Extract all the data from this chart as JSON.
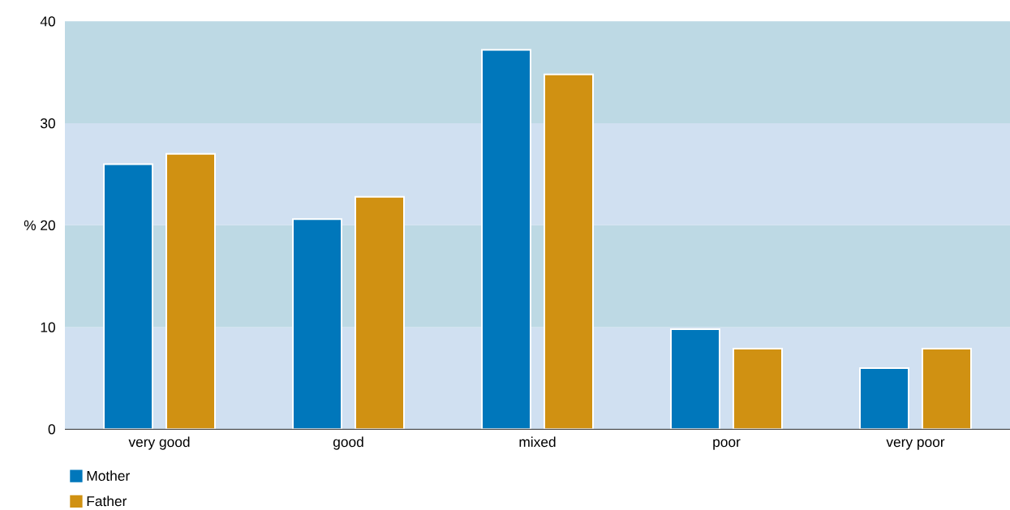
{
  "chart_data": {
    "type": "bar",
    "ylabel": "%",
    "categories": [
      "very good",
      "good",
      "mixed",
      "poor",
      "very poor"
    ],
    "series": [
      {
        "name": "Mother",
        "color": "#0077bb",
        "values": [
          26,
          20.6,
          37.2,
          9.8,
          6
        ]
      },
      {
        "name": "Father",
        "color": "#d09112",
        "values": [
          27,
          22.8,
          34.8,
          7.9,
          7.9
        ]
      }
    ],
    "ylim": [
      0,
      40
    ],
    "yticks": [
      0,
      10,
      20,
      30,
      40
    ],
    "bands": [
      {
        "axis": "y",
        "from": 0,
        "to": 10,
        "color": "#d0e0f1"
      },
      {
        "axis": "y",
        "from": 10,
        "to": 20,
        "color": "#bdd9e4"
      },
      {
        "axis": "y",
        "from": 20,
        "to": 30,
        "color": "#d0e0f1"
      },
      {
        "axis": "y",
        "from": 30,
        "to": 40,
        "color": "#bdd9e4"
      }
    ],
    "legend": "bottom left"
  }
}
